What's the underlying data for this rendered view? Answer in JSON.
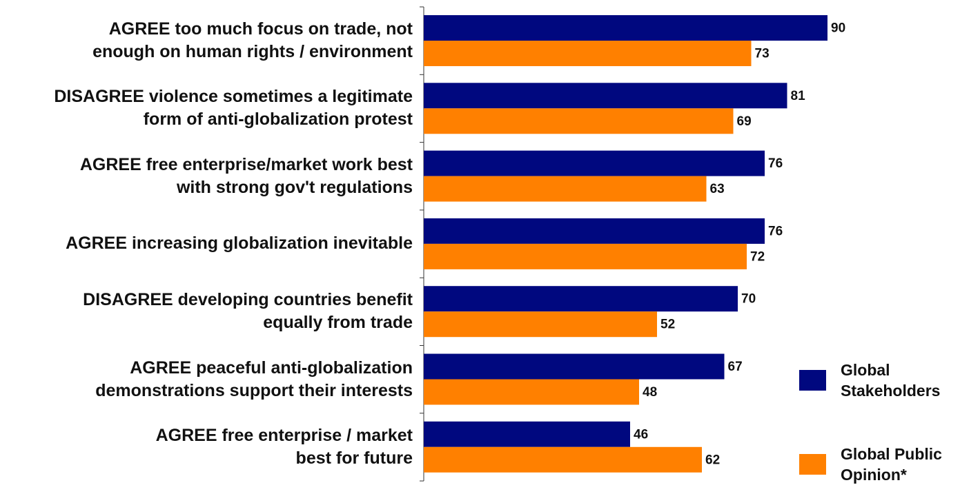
{
  "chart_data": {
    "type": "bar",
    "orientation": "horizontal",
    "categories": [
      "AGREE too much focus on trade, not\nenough on human rights / environment",
      "DISAGREE violence sometimes a legitimate\nform of anti-globalization protest",
      "AGREE free enterprise/market work best\nwith strong gov't regulations",
      "AGREE increasing globalization inevitable",
      "DISAGREE developing countries benefit\nequally from trade",
      "AGREE peaceful anti-globalization\ndemonstrations support their interests",
      "AGREE free enterprise / market\nbest for future"
    ],
    "series": [
      {
        "name": "Global\nStakeholders",
        "color": "#00087f",
        "values": [
          90,
          81,
          76,
          76,
          70,
          67,
          46
        ]
      },
      {
        "name": "Global Public\nOpinion*",
        "color": "#ff8000",
        "values": [
          73,
          69,
          63,
          72,
          52,
          48,
          62
        ]
      }
    ],
    "xlim": [
      0,
      100
    ]
  }
}
